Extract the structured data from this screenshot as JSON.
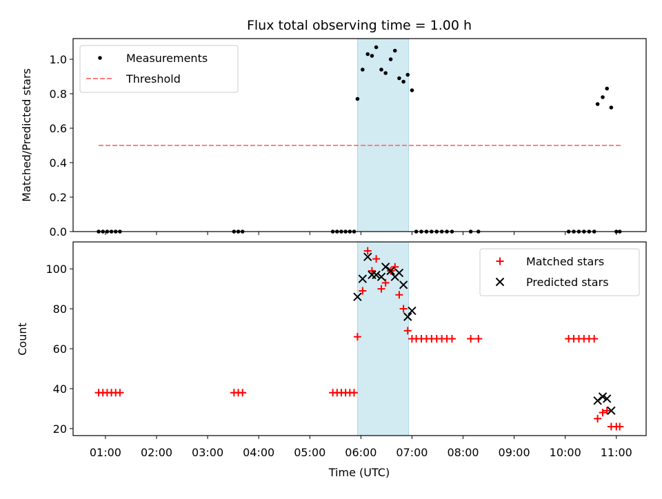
{
  "figure": {
    "title": "Flux total observing time = 1.00 h",
    "shaded_interval": [
      "05:56",
      "06:56"
    ],
    "shade_color": "#add8e6",
    "x_ticks": [
      "01:00",
      "02:00",
      "03:00",
      "04:00",
      "05:00",
      "06:00",
      "07:00",
      "08:00",
      "09:00",
      "10:00",
      "11:00"
    ],
    "xlabel": "Time (UTC)"
  },
  "chart_data": [
    {
      "type": "scatter",
      "ylabel": "Matched/Predicted stars",
      "ylim": [
        0,
        1.12
      ],
      "y_ticks": [
        "0.0",
        "0.2",
        "0.4",
        "0.6",
        "0.8",
        "1.0"
      ],
      "legend_position": "top-left",
      "series": [
        {
          "name": "Measurements",
          "marker": "dot",
          "color": "#000000",
          "points": [
            [
              "00:52",
              0
            ],
            [
              "00:57",
              0
            ],
            [
              "01:02",
              0
            ],
            [
              "01:07",
              0
            ],
            [
              "01:12",
              0
            ],
            [
              "01:17",
              0
            ],
            [
              "03:31",
              0
            ],
            [
              "03:36",
              0
            ],
            [
              "03:41",
              0
            ],
            [
              "05:27",
              0
            ],
            [
              "05:32",
              0
            ],
            [
              "05:37",
              0
            ],
            [
              "05:42",
              0
            ],
            [
              "05:47",
              0
            ],
            [
              "05:52",
              0
            ],
            [
              "05:56",
              0.77
            ],
            [
              "06:02",
              0.94
            ],
            [
              "06:08",
              1.03
            ],
            [
              "06:13",
              1.02
            ],
            [
              "06:18",
              1.07
            ],
            [
              "06:24",
              0.94
            ],
            [
              "06:29",
              0.92
            ],
            [
              "06:35",
              1.0
            ],
            [
              "06:40",
              1.05
            ],
            [
              "06:45",
              0.89
            ],
            [
              "06:50",
              0.87
            ],
            [
              "06:55",
              0.91
            ],
            [
              "07:00",
              0.82
            ],
            [
              "07:05",
              0
            ],
            [
              "07:11",
              0
            ],
            [
              "07:17",
              0
            ],
            [
              "07:23",
              0
            ],
            [
              "07:29",
              0
            ],
            [
              "07:35",
              0
            ],
            [
              "07:41",
              0
            ],
            [
              "07:47",
              0
            ],
            [
              "08:09",
              0
            ],
            [
              "08:18",
              0
            ],
            [
              "10:04",
              0
            ],
            [
              "10:10",
              0
            ],
            [
              "10:16",
              0
            ],
            [
              "10:22",
              0
            ],
            [
              "10:28",
              0
            ],
            [
              "10:34",
              0
            ],
            [
              "10:38",
              0.74
            ],
            [
              "10:44",
              0.78
            ],
            [
              "10:49",
              0.83
            ],
            [
              "10:54",
              0.72
            ],
            [
              "11:00",
              0
            ],
            [
              "11:04",
              0
            ]
          ]
        },
        {
          "name": "Threshold",
          "style": "dashed",
          "color": "#ff7f7f",
          "x": [
            "00:52",
            "11:05"
          ],
          "y": [
            0.5,
            0.5
          ]
        }
      ]
    },
    {
      "type": "scatter",
      "ylabel": "Count",
      "ylim": [
        16.5,
        113.5
      ],
      "y_ticks": [
        "20",
        "40",
        "60",
        "80",
        "100"
      ],
      "legend_position": "top-right",
      "series": [
        {
          "name": "Matched stars",
          "marker": "plus",
          "color": "#ff0000",
          "points": [
            [
              "00:52",
              38
            ],
            [
              "00:57",
              38
            ],
            [
              "01:02",
              38
            ],
            [
              "01:07",
              38
            ],
            [
              "01:12",
              38
            ],
            [
              "01:17",
              38
            ],
            [
              "03:31",
              38
            ],
            [
              "03:36",
              38
            ],
            [
              "03:41",
              38
            ],
            [
              "05:27",
              38
            ],
            [
              "05:32",
              38
            ],
            [
              "05:37",
              38
            ],
            [
              "05:42",
              38
            ],
            [
              "05:47",
              38
            ],
            [
              "05:52",
              38
            ],
            [
              "05:56",
              66
            ],
            [
              "06:02",
              89
            ],
            [
              "06:08",
              109
            ],
            [
              "06:13",
              99
            ],
            [
              "06:18",
              105
            ],
            [
              "06:24",
              90
            ],
            [
              "06:29",
              93
            ],
            [
              "06:35",
              99
            ],
            [
              "06:40",
              101
            ],
            [
              "06:45",
              87
            ],
            [
              "06:50",
              80
            ],
            [
              "06:55",
              69
            ],
            [
              "07:00",
              65
            ],
            [
              "07:05",
              65
            ],
            [
              "07:11",
              65
            ],
            [
              "07:17",
              65
            ],
            [
              "07:23",
              65
            ],
            [
              "07:29",
              65
            ],
            [
              "07:35",
              65
            ],
            [
              "07:41",
              65
            ],
            [
              "07:47",
              65
            ],
            [
              "08:09",
              65
            ],
            [
              "08:18",
              65
            ],
            [
              "10:04",
              65
            ],
            [
              "10:10",
              65
            ],
            [
              "10:16",
              65
            ],
            [
              "10:22",
              65
            ],
            [
              "10:28",
              65
            ],
            [
              "10:34",
              65
            ],
            [
              "10:38",
              25
            ],
            [
              "10:44",
              28
            ],
            [
              "10:49",
              29
            ],
            [
              "10:54",
              21
            ],
            [
              "11:00",
              21
            ],
            [
              "11:04",
              21
            ]
          ]
        },
        {
          "name": "Predicted stars",
          "marker": "x",
          "color": "#000000",
          "points": [
            [
              "05:56",
              86
            ],
            [
              "06:02",
              95
            ],
            [
              "06:08",
              106
            ],
            [
              "06:13",
              97
            ],
            [
              "06:18",
              97
            ],
            [
              "06:24",
              96
            ],
            [
              "06:29",
              101
            ],
            [
              "06:35",
              99
            ],
            [
              "06:40",
              96
            ],
            [
              "06:45",
              98
            ],
            [
              "06:50",
              92
            ],
            [
              "06:55",
              76
            ],
            [
              "07:00",
              79
            ],
            [
              "10:38",
              34
            ],
            [
              "10:44",
              36
            ],
            [
              "10:49",
              35
            ],
            [
              "10:54",
              29
            ]
          ]
        }
      ]
    }
  ]
}
